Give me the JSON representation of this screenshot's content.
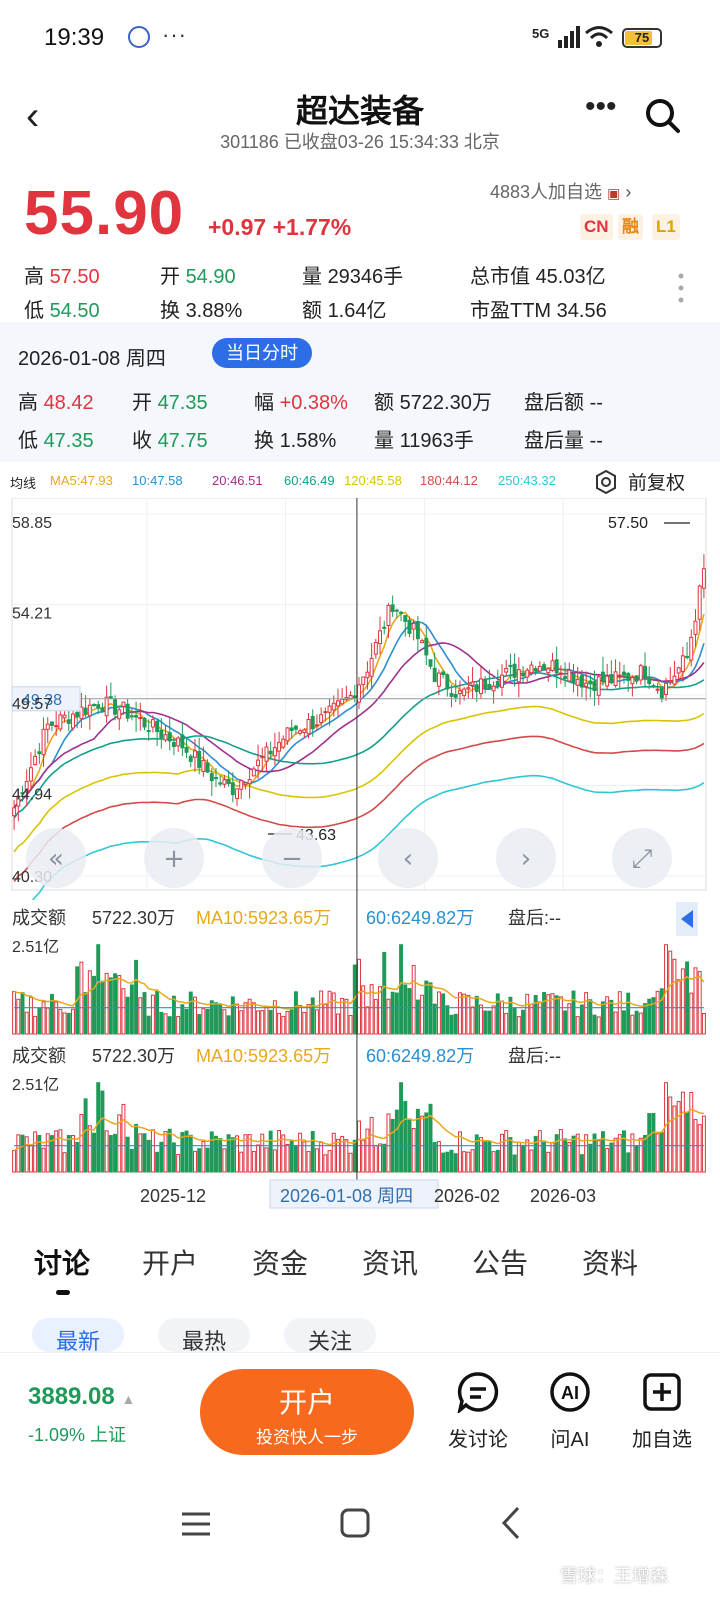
{
  "status": {
    "time": "19:39",
    "dots": "···",
    "network": "5G",
    "battery": "75"
  },
  "nav": {
    "title": "超达装备",
    "subtitle": "301186 已收盘03-26 15:34:33 北京"
  },
  "quote": {
    "price": "55.90",
    "change": "+0.97",
    "pct": "+1.77%",
    "watch": "4883人加自选",
    "badges": [
      "CN",
      "融",
      "L1"
    ],
    "stats": [
      {
        "label": "高",
        "value": "57.50",
        "cls": "red"
      },
      {
        "label": "开",
        "value": "54.90",
        "cls": "green"
      },
      {
        "label": "量",
        "value": "29346手",
        "cls": ""
      },
      {
        "label": "总市值",
        "value": "45.03亿",
        "cls": ""
      },
      {
        "label": "低",
        "value": "54.50",
        "cls": "green"
      },
      {
        "label": "换",
        "value": "3.88%",
        "cls": ""
      },
      {
        "label": "额",
        "value": "1.64亿",
        "cls": ""
      },
      {
        "label": "市盈TTM",
        "value": "34.56",
        "cls": ""
      }
    ]
  },
  "day": {
    "date": "2026-01-08 周四",
    "pill": "当日分时",
    "stats": [
      {
        "label": "高",
        "value": "48.42",
        "cls": "red"
      },
      {
        "label": "开",
        "value": "47.35",
        "cls": "green"
      },
      {
        "label": "幅",
        "value": "+0.38%",
        "cls": "red"
      },
      {
        "label": "额",
        "value": "5722.30万",
        "cls": ""
      },
      {
        "label": "盘后额",
        "value": "--",
        "cls": ""
      },
      {
        "label": "低",
        "value": "47.35",
        "cls": "green"
      },
      {
        "label": "收",
        "value": "47.75",
        "cls": "green"
      },
      {
        "label": "换",
        "value": "1.58%",
        "cls": ""
      },
      {
        "label": "量",
        "value": "11963手",
        "cls": ""
      },
      {
        "label": "盘后量",
        "value": "--",
        "cls": ""
      }
    ]
  },
  "ma": {
    "label": "均线",
    "items": [
      {
        "text": "MA5:47.93",
        "color": "#e8a81c"
      },
      {
        "text": "10:47.58",
        "color": "#2a8fd0"
      },
      {
        "text": "20:46.51",
        "color": "#a0308c"
      },
      {
        "text": "60:46.49",
        "color": "#12a08a"
      },
      {
        "text": "120:45.58",
        "color": "#d9c400"
      },
      {
        "text": "180:44.12",
        "color": "#d44a4a"
      },
      {
        "text": "250:43.32",
        "color": "#2fc6d8"
      }
    ],
    "adjust": "前复权"
  },
  "chart_data": {
    "type": "candlestick",
    "y_ticks": [
      "58.85",
      "54.21",
      "49.57",
      "44.94",
      "40.30"
    ],
    "ylim": [
      40.3,
      58.85
    ],
    "crosshair_price": "49.38",
    "max_label": "57.50",
    "min_label": "43.63",
    "x_ticks": [
      "2025-12",
      "2026-01-08 周四",
      "2026-02",
      "2026-03"
    ],
    "volume_panels": [
      {
        "label": "成交额",
        "value": "5722.30万",
        "ma10": "MA10:5923.65万",
        "ma60": "60:6249.82万",
        "after": "盘后:--",
        "max": "2.51亿"
      },
      {
        "label": "成交额",
        "value": "5722.30万",
        "ma10": "MA10:5923.65万",
        "ma60": "60:6249.82万",
        "after": "盘后:--",
        "max": "2.51亿"
      }
    ],
    "colors": {
      "up": "#e0343e",
      "down": "#1f9a58"
    }
  },
  "tabs": [
    "讨论",
    "开户",
    "资金",
    "资讯",
    "公告",
    "资料"
  ],
  "subtabs": [
    "最新",
    "最热",
    "关注"
  ],
  "bottom": {
    "index_value": "3889.08",
    "index_change": "-1.09% 上证",
    "open_title": "开户",
    "open_sub": "投资快人一步",
    "actions": [
      "发讨论",
      "问AI",
      "加自选"
    ]
  },
  "watermark": "雪球：王增森"
}
